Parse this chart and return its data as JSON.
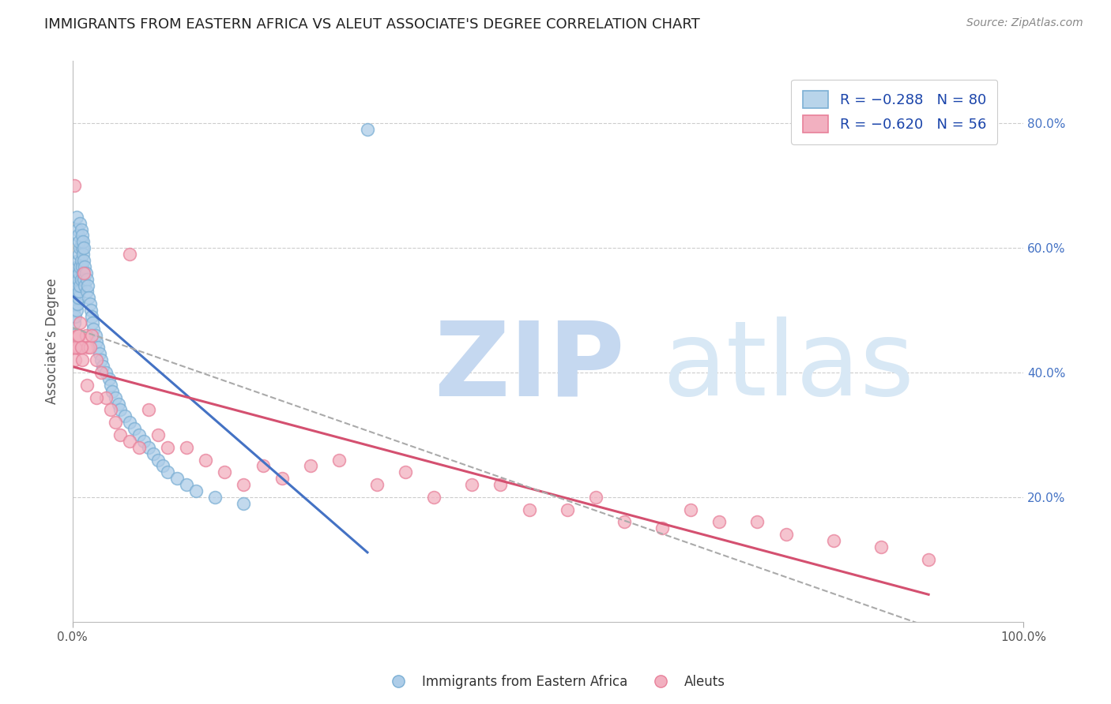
{
  "title": "IMMIGRANTS FROM EASTERN AFRICA VS ALEUT ASSOCIATE'S DEGREE CORRELATION CHART",
  "source": "Source: ZipAtlas.com",
  "ylabel": "Associate’s Degree",
  "color_blue_edge": "#7bafd4",
  "color_blue_face": "#aecde8",
  "color_pink_edge": "#e8809a",
  "color_pink_face": "#f2b0c0",
  "trend_blue": "#4472c4",
  "trend_pink": "#d45070",
  "trend_gray": "#aaaaaa",
  "R1": -0.288,
  "N1": 80,
  "R2": -0.62,
  "N2": 56,
  "legend_label1": "R = −0.288   N = 80",
  "legend_label2": "R = −0.620   N = 56",
  "legend_face1": "#b8d4ea",
  "legend_face2": "#f2b0c0",
  "legend_edge1": "#7bafd4",
  "legend_edge2": "#e8809a",
  "xlim": [
    0.0,
    1.0
  ],
  "ylim": [
    0.0,
    0.9
  ],
  "yticks": [
    0.2,
    0.4,
    0.6,
    0.8
  ],
  "ytick_labels": [
    "20.0%",
    "40.0%",
    "60.0%",
    "80.0%"
  ],
  "grid_color": "#cccccc",
  "bg_color": "#ffffff",
  "title_fontsize": 13,
  "source_fontsize": 10,
  "legend_fontsize": 13,
  "ylabel_fontsize": 12,
  "tick_fontsize": 11,
  "watermark_zip_color": "#c8dff5",
  "watermark_atlas_color": "#c8dff5"
}
